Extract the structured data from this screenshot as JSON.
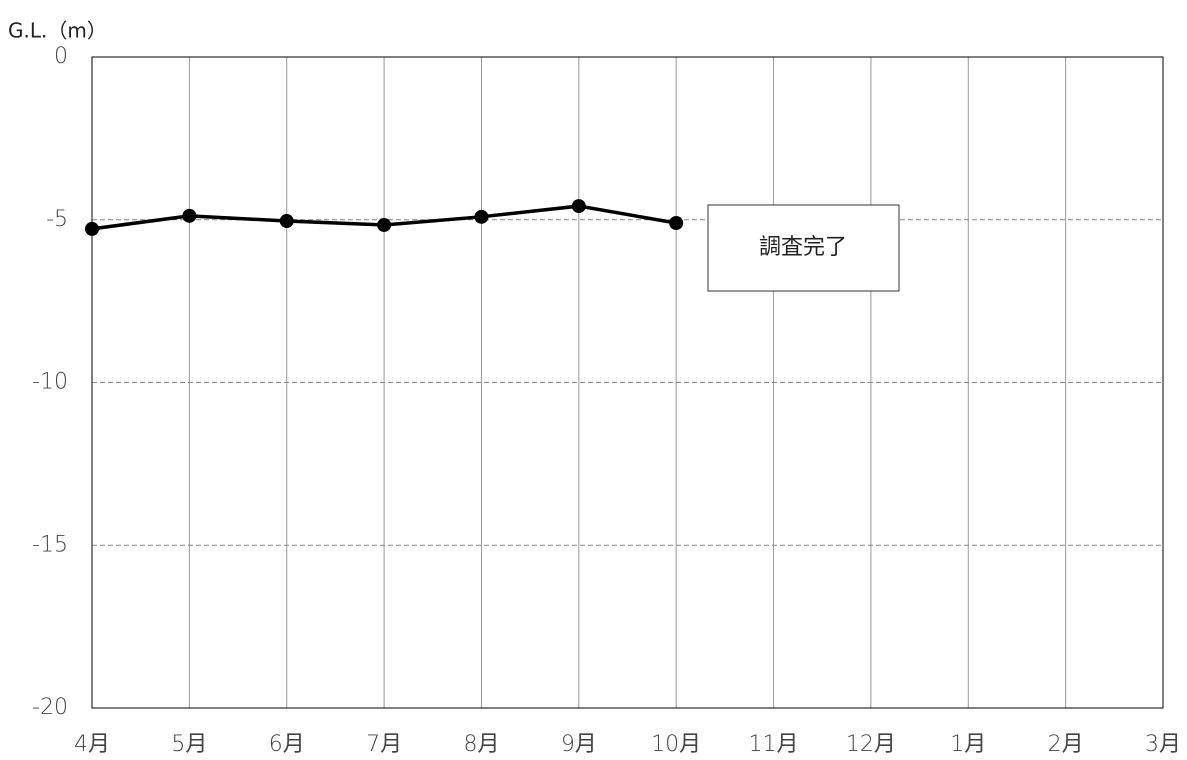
{
  "chart_data": {
    "type": "line",
    "y_axis_label": "G.L.（m）",
    "categories": [
      "4月",
      "5月",
      "6月",
      "7月",
      "8月",
      "9月",
      "10月",
      "11月",
      "12月",
      "1月",
      "2月",
      "3月"
    ],
    "values": [
      -5.28,
      -4.88,
      -5.04,
      -5.16,
      -4.91,
      -4.58,
      -5.1,
      null,
      null,
      null,
      null,
      null
    ],
    "color": "#000000",
    "ylim": [
      -20,
      0
    ],
    "yticks": [
      0,
      -5,
      -10,
      -15,
      -20
    ],
    "grid": true,
    "annotation": "調査完了"
  }
}
